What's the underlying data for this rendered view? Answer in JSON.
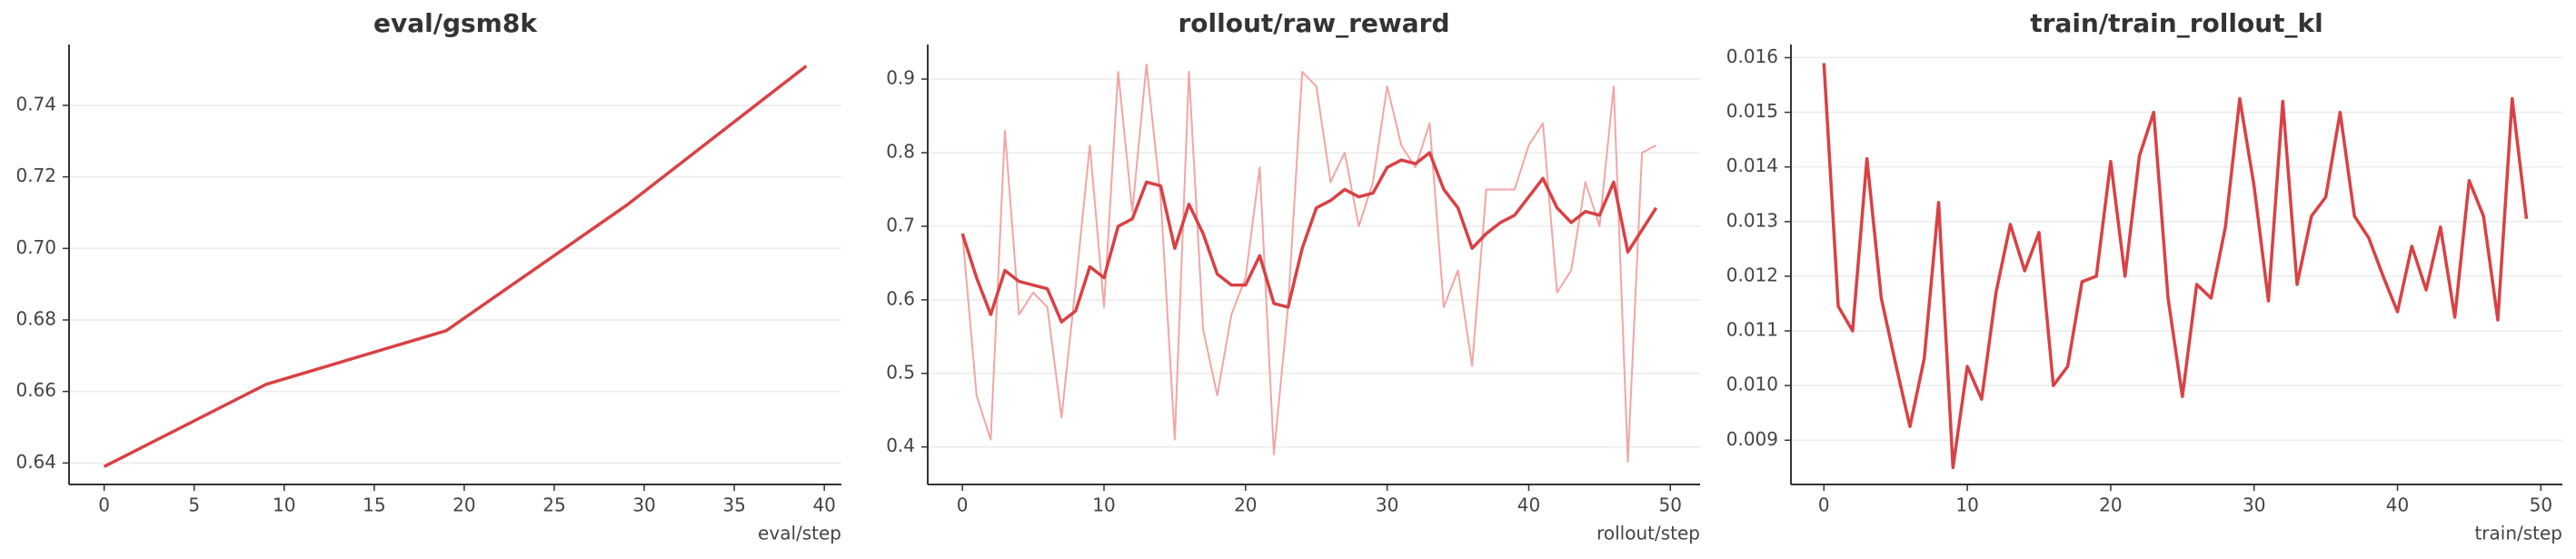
{
  "chart_data": [
    {
      "type": "line",
      "title": "eval/gsm8k",
      "x_label": "eval/step",
      "x": [
        0,
        9,
        19,
        29,
        39
      ],
      "series": [
        {
          "color": "#d94144",
          "values": [
            0.639,
            0.662,
            0.677,
            0.712,
            0.751
          ]
        }
      ],
      "xlim": [
        -1.95,
        40.95
      ],
      "xticks": [
        0,
        5,
        10,
        15,
        20,
        25,
        30,
        35,
        40
      ],
      "ylim": [
        0.634,
        0.757
      ],
      "yticks": [
        0.64,
        0.66,
        0.68,
        {
          "value": 0.7,
          "label": "0.70"
        },
        0.72,
        0.74
      ],
      "grid": true
    },
    {
      "type": "line",
      "title": "rollout/raw_reward",
      "x_label": "rollout/step",
      "x": [
        0,
        1,
        2,
        3,
        4,
        5,
        6,
        7,
        8,
        9,
        10,
        11,
        12,
        13,
        14,
        15,
        16,
        17,
        18,
        19,
        20,
        21,
        22,
        23,
        24,
        25,
        26,
        27,
        28,
        29,
        30,
        31,
        32,
        33,
        34,
        35,
        36,
        37,
        38,
        39,
        40,
        41,
        42,
        43,
        44,
        45,
        46,
        47,
        48,
        49
      ],
      "series": [
        {
          "color": "#f2a5a5",
          "width": 2,
          "values": [
            0.69,
            0.47,
            0.41,
            0.83,
            0.58,
            0.61,
            0.59,
            0.44,
            0.62,
            0.81,
            0.59,
            0.91,
            0.72,
            0.92,
            0.74,
            0.41,
            0.91,
            0.56,
            0.47,
            0.58,
            0.63,
            0.78,
            0.39,
            0.59,
            0.91,
            0.89,
            0.76,
            0.8,
            0.7,
            0.76,
            0.89,
            0.81,
            0.78,
            0.84,
            0.59,
            0.64,
            0.51,
            0.75,
            0.75,
            0.75,
            0.81,
            0.84,
            0.61,
            0.64,
            0.76,
            0.7,
            0.89,
            0.38,
            0.8,
            0.81
          ]
        },
        {
          "color": "#d94144",
          "width": 3.5,
          "values": [
            0.69,
            0.63,
            0.58,
            0.64,
            0.625,
            0.62,
            0.615,
            0.57,
            0.585,
            0.645,
            0.63,
            0.7,
            0.71,
            0.76,
            0.755,
            0.67,
            0.73,
            0.69,
            0.635,
            0.62,
            0.62,
            0.66,
            0.595,
            0.59,
            0.67,
            0.725,
            0.735,
            0.75,
            0.74,
            0.745,
            0.78,
            0.79,
            0.785,
            0.8,
            0.75,
            0.725,
            0.67,
            0.69,
            0.705,
            0.715,
            0.74,
            0.765,
            0.725,
            0.705,
            0.72,
            0.715,
            0.76,
            0.665,
            0.695,
            0.725
          ]
        }
      ],
      "xlim": [
        -2.45,
        52.1
      ],
      "xticks": [
        0,
        10,
        20,
        30,
        40,
        50
      ],
      "ylim": [
        0.349,
        0.947
      ],
      "yticks": [
        0.4,
        0.5,
        0.6,
        0.7,
        0.8,
        0.9
      ],
      "grid": true
    },
    {
      "type": "line",
      "title": "train/train_rollout_kl",
      "x_label": "train/step",
      "x": [
        0,
        1,
        2,
        3,
        4,
        5,
        6,
        7,
        8,
        9,
        10,
        11,
        12,
        13,
        14,
        15,
        16,
        17,
        18,
        19,
        20,
        21,
        22,
        23,
        24,
        25,
        26,
        27,
        28,
        29,
        30,
        31,
        32,
        33,
        34,
        35,
        36,
        37,
        38,
        39,
        40,
        41,
        42,
        43,
        44,
        45,
        46,
        47,
        48,
        49
      ],
      "series": [
        {
          "color": "#d94144",
          "values": [
            0.0159,
            0.01145,
            0.011,
            0.01415,
            0.0116,
            0.0104,
            0.00925,
            0.0105,
            0.01335,
            0.0085,
            0.01035,
            0.00975,
            0.0117,
            0.01295,
            0.0121,
            0.0128,
            0.01,
            0.01035,
            0.0119,
            0.012,
            0.0141,
            0.012,
            0.0142,
            0.015,
            0.0116,
            0.0098,
            0.01185,
            0.0116,
            0.0129,
            0.01525,
            0.01365,
            0.01155,
            0.0152,
            0.01185,
            0.0131,
            0.01345,
            0.015,
            0.0131,
            0.0127,
            0.012,
            0.01135,
            0.01255,
            0.01175,
            0.0129,
            0.01125,
            0.01375,
            0.0131,
            0.0112,
            0.01525,
            0.01305
          ]
        }
      ],
      "xlim": [
        -2.3,
        51.5
      ],
      "xticks": [
        0,
        10,
        20,
        30,
        40,
        50
      ],
      "ylim": [
        0.00819,
        0.01624
      ],
      "yticks": [
        0.009,
        {
          "value": 0.01,
          "label": "0.010"
        },
        0.011,
        0.012,
        0.013,
        0.014,
        0.015,
        0.016
      ],
      "grid": true
    }
  ]
}
